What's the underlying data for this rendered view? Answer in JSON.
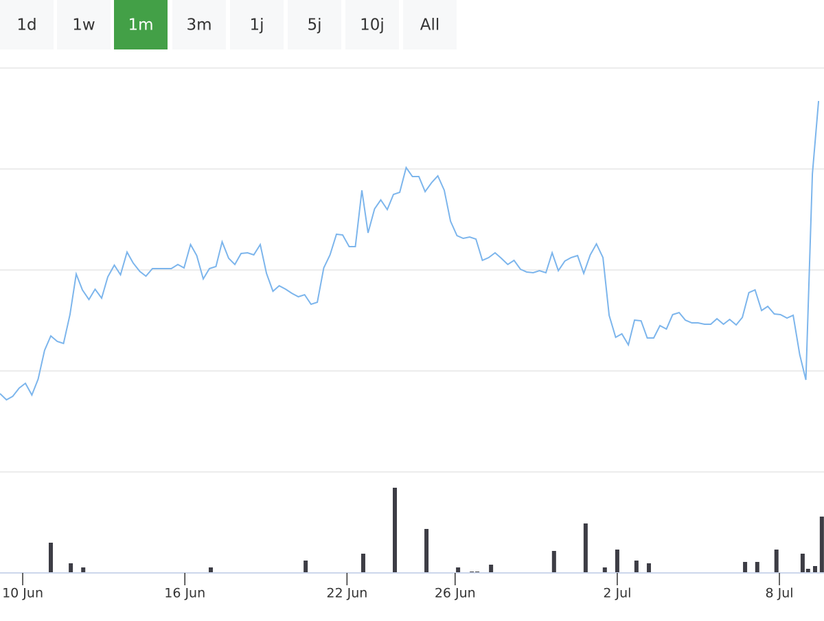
{
  "range_selector": {
    "buttons": [
      "1d",
      "1w",
      "1m",
      "3m",
      "1j",
      "5j",
      "10j",
      "All"
    ],
    "selected": 2
  },
  "chart_data": [
    {
      "type": "line",
      "color": "#7cb5ec",
      "grid": true,
      "x": [
        -0.84,
        -0.6,
        -0.37,
        -0.13,
        0.1,
        0.34,
        0.57,
        0.81,
        1.04,
        1.28,
        1.51,
        1.75,
        1.98,
        2.21,
        2.45,
        2.68,
        2.92,
        3.15,
        3.39,
        3.62,
        3.86,
        4.09,
        4.33,
        4.56,
        4.8,
        5.03,
        5.27,
        5.5,
        5.74,
        5.97,
        6.21,
        6.44,
        6.68,
        6.91,
        7.15,
        7.38,
        7.62,
        7.85,
        8.08,
        8.32,
        8.55,
        8.79,
        9.02,
        9.26,
        9.49,
        9.73,
        9.96,
        10.2,
        10.43,
        10.67,
        10.9,
        11.14,
        11.37,
        11.61,
        11.84,
        12.08,
        12.31,
        12.55,
        12.78,
        13.02,
        13.25,
        13.49,
        13.72,
        13.95,
        14.19,
        14.42,
        14.66,
        14.89,
        15.13,
        15.36,
        15.6,
        15.83,
        16.07,
        16.3,
        16.54,
        16.77,
        17.01,
        17.24,
        17.48,
        17.71,
        17.95,
        18.18,
        18.42,
        18.65,
        18.89,
        19.12,
        19.36,
        19.59,
        19.82,
        20.06,
        20.29,
        20.53,
        20.76,
        21.0,
        21.23,
        21.47,
        21.7,
        21.94,
        22.17,
        22.41,
        22.64,
        22.88,
        23.11,
        23.35,
        23.58,
        23.82,
        24.05,
        24.29,
        24.52,
        24.76,
        24.99,
        25.23,
        25.46,
        25.69,
        25.93,
        26.16,
        26.4,
        26.63,
        26.87,
        27.1,
        27.34,
        27.57,
        27.81,
        28.04,
        28.28,
        28.51,
        28.75,
        28.98,
        29.22,
        29.45
      ],
      "values": [
        114,
        105,
        110,
        122,
        129,
        112,
        135,
        177,
        198,
        190,
        187,
        229,
        288,
        265,
        251,
        266,
        253,
        284,
        301,
        287,
        320,
        304,
        292,
        285,
        296,
        296,
        296,
        296,
        302,
        297,
        331,
        315,
        281,
        296,
        299,
        335,
        311,
        302,
        318,
        319,
        316,
        331,
        289,
        263,
        271,
        266,
        260,
        255,
        258,
        244,
        247,
        297,
        316,
        346,
        345,
        328,
        328,
        410,
        348,
        383,
        396,
        382,
        404,
        407,
        443,
        430,
        430,
        408,
        421,
        431,
        410,
        365,
        344,
        340,
        342,
        339,
        308,
        312,
        319,
        311,
        302,
        308,
        295,
        291,
        290,
        293,
        290,
        319,
        293,
        307,
        312,
        315,
        289,
        316,
        332,
        312,
        228,
        196,
        201,
        185,
        221,
        220,
        195,
        195,
        213,
        208,
        229,
        232,
        221,
        217,
        217,
        215,
        215,
        223,
        215,
        222,
        214,
        225,
        261,
        265,
        235,
        241,
        230,
        229,
        224,
        228,
        171,
        134,
        434,
        540
      ],
      "xlim": [
        -0.84,
        29.65
      ],
      "ylim": [
        0,
        588
      ],
      "yticks": [
        0,
        147,
        294,
        441,
        588
      ]
    },
    {
      "type": "bar",
      "color": "#3d3d45",
      "x": [
        1.04,
        1.78,
        2.24,
        6.96,
        10.47,
        12.6,
        13.77,
        14.94,
        16.11,
        16.62,
        16.82,
        17.33,
        19.66,
        20.83,
        21.54,
        22.0,
        22.71,
        23.17,
        26.73,
        27.18,
        27.89,
        28.86,
        29.06,
        29.32,
        29.57
      ],
      "values": [
        44,
        14,
        8,
        8,
        18,
        28,
        124,
        64,
        8,
        2,
        2,
        12,
        32,
        72,
        8,
        34,
        18,
        14,
        16,
        16,
        34,
        28,
        6,
        10,
        82
      ],
      "xlim": [
        -0.84,
        29.65
      ],
      "ylim": [
        0,
        147
      ],
      "xticks": [
        {
          "value": 0,
          "label": "10 Jun"
        },
        {
          "value": 6,
          "label": "16 Jun"
        },
        {
          "value": 12,
          "label": "22 Jun"
        },
        {
          "value": 16,
          "label": "26 Jun"
        },
        {
          "value": 22,
          "label": "2 Jul"
        },
        {
          "value": 28,
          "label": "8 Jul"
        }
      ]
    }
  ]
}
